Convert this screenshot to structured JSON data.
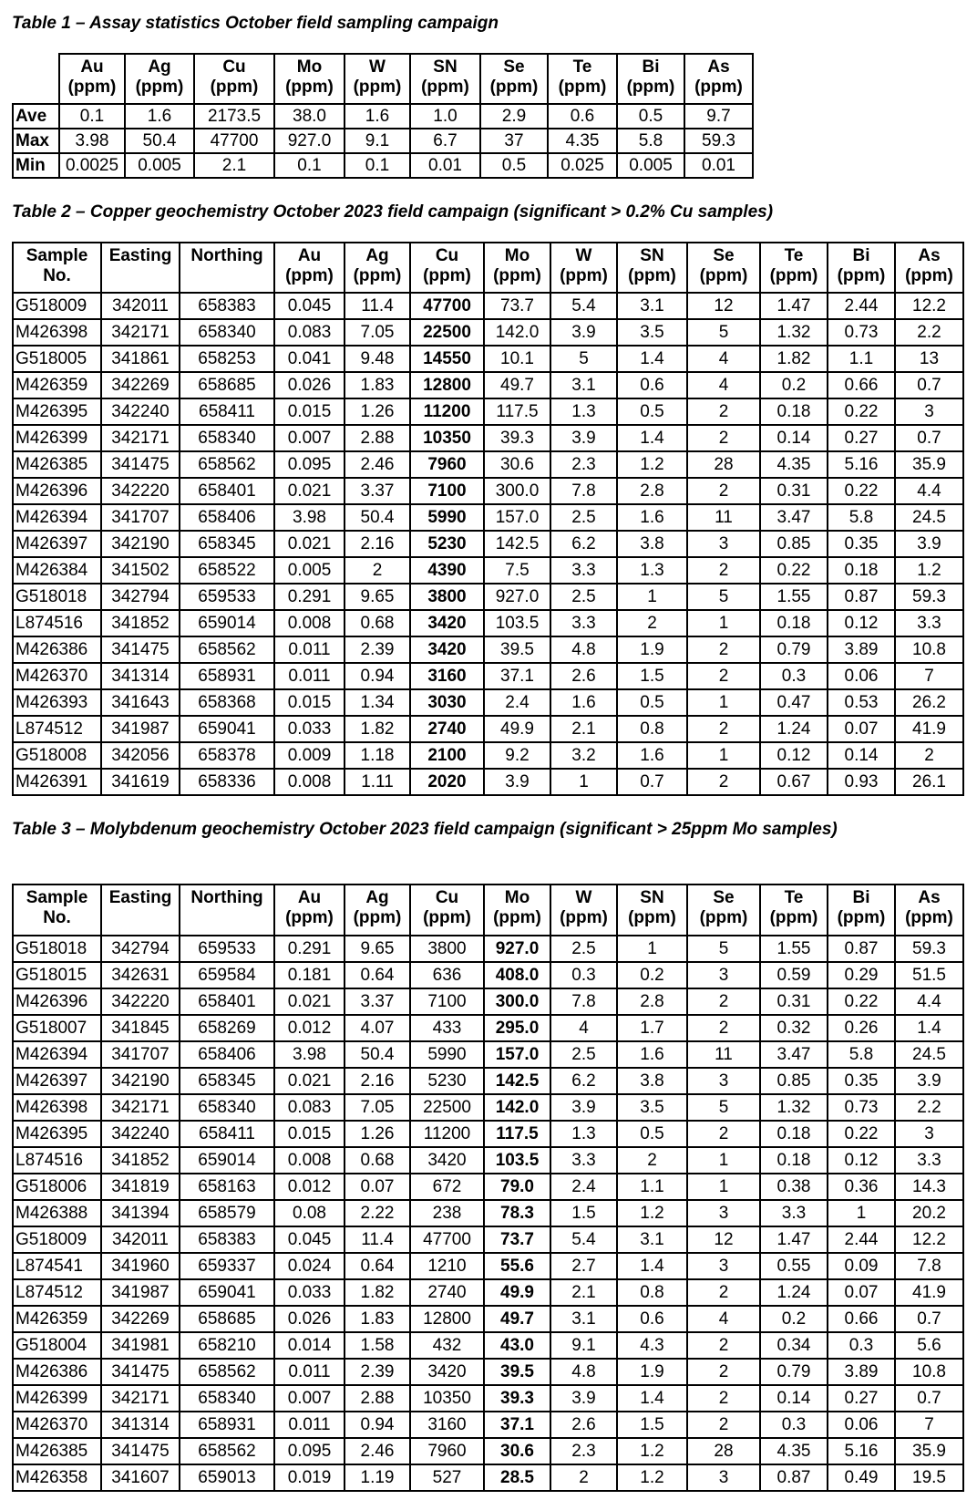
{
  "tables": [
    {
      "title": "Table 1 – Assay statistics October field sampling campaign",
      "headers": [
        [
          "",
          ""
        ],
        [
          "Au",
          "(ppm)"
        ],
        [
          "Ag",
          "(ppm)"
        ],
        [
          "Cu",
          "(ppm)"
        ],
        [
          "Mo",
          "(ppm)"
        ],
        [
          "W",
          "(ppm)"
        ],
        [
          "SN",
          "(ppm)"
        ],
        [
          "Se",
          "(ppm)"
        ],
        [
          "Te",
          "(ppm)"
        ],
        [
          "Bi",
          "(ppm)"
        ],
        [
          "As",
          "(ppm)"
        ]
      ],
      "rows": [
        [
          "Ave",
          "0.1",
          "1.6",
          "2173.5",
          "38.0",
          "1.6",
          "1.0",
          "2.9",
          "0.6",
          "0.5",
          "9.7"
        ],
        [
          "Max",
          "3.98",
          "50.4",
          "47700",
          "927.0",
          "9.1",
          "6.7",
          "37",
          "4.35",
          "5.8",
          "59.3"
        ],
        [
          "Min",
          "0.0025",
          "0.005",
          "2.1",
          "0.1",
          "0.1",
          "0.01",
          "0.5",
          "0.025",
          "0.005",
          "0.01"
        ]
      ]
    },
    {
      "title": "Table 2 – Copper geochemistry October 2023 field campaign (significant > 0.2% Cu samples)",
      "headers": [
        [
          "Sample",
          "No."
        ],
        [
          "Easting",
          ""
        ],
        [
          "Northing",
          ""
        ],
        [
          "Au",
          "(ppm)"
        ],
        [
          "Ag",
          "(ppm)"
        ],
        [
          "Cu",
          "(ppm)"
        ],
        [
          "Mo",
          "(ppm)"
        ],
        [
          "W",
          "(ppm)"
        ],
        [
          "SN",
          "(ppm)"
        ],
        [
          "Se",
          "(ppm)"
        ],
        [
          "Te",
          "(ppm)"
        ],
        [
          "Bi",
          "(ppm)"
        ],
        [
          "As",
          "(ppm)"
        ]
      ],
      "bold_column": "Cu",
      "rows": [
        [
          "G518009",
          "342011",
          "658383",
          "0.045",
          "11.4",
          "47700",
          "73.7",
          "5.4",
          "3.1",
          "12",
          "1.47",
          "2.44",
          "12.2"
        ],
        [
          "M426398",
          "342171",
          "658340",
          "0.083",
          "7.05",
          "22500",
          "142.0",
          "3.9",
          "3.5",
          "5",
          "1.32",
          "0.73",
          "2.2"
        ],
        [
          "G518005",
          "341861",
          "658253",
          "0.041",
          "9.48",
          "14550",
          "10.1",
          "5",
          "1.4",
          "4",
          "1.82",
          "1.1",
          "13"
        ],
        [
          "M426359",
          "342269",
          "658685",
          "0.026",
          "1.83",
          "12800",
          "49.7",
          "3.1",
          "0.6",
          "4",
          "0.2",
          "0.66",
          "0.7"
        ],
        [
          "M426395",
          "342240",
          "658411",
          "0.015",
          "1.26",
          "11200",
          "117.5",
          "1.3",
          "0.5",
          "2",
          "0.18",
          "0.22",
          "3"
        ],
        [
          "M426399",
          "342171",
          "658340",
          "0.007",
          "2.88",
          "10350",
          "39.3",
          "3.9",
          "1.4",
          "2",
          "0.14",
          "0.27",
          "0.7"
        ],
        [
          "M426385",
          "341475",
          "658562",
          "0.095",
          "2.46",
          "7960",
          "30.6",
          "2.3",
          "1.2",
          "28",
          "4.35",
          "5.16",
          "35.9"
        ],
        [
          "M426396",
          "342220",
          "658401",
          "0.021",
          "3.37",
          "7100",
          "300.0",
          "7.8",
          "2.8",
          "2",
          "0.31",
          "0.22",
          "4.4"
        ],
        [
          "M426394",
          "341707",
          "658406",
          "3.98",
          "50.4",
          "5990",
          "157.0",
          "2.5",
          "1.6",
          "11",
          "3.47",
          "5.8",
          "24.5"
        ],
        [
          "M426397",
          "342190",
          "658345",
          "0.021",
          "2.16",
          "5230",
          "142.5",
          "6.2",
          "3.8",
          "3",
          "0.85",
          "0.35",
          "3.9"
        ],
        [
          "M426384",
          "341502",
          "658522",
          "0.005",
          "2",
          "4390",
          "7.5",
          "3.3",
          "1.3",
          "2",
          "0.22",
          "0.18",
          "1.2"
        ],
        [
          "G518018",
          "342794",
          "659533",
          "0.291",
          "9.65",
          "3800",
          "927.0",
          "2.5",
          "1",
          "5",
          "1.55",
          "0.87",
          "59.3"
        ],
        [
          "L874516",
          "341852",
          "659014",
          "0.008",
          "0.68",
          "3420",
          "103.5",
          "3.3",
          "2",
          "1",
          "0.18",
          "0.12",
          "3.3"
        ],
        [
          "M426386",
          "341475",
          "658562",
          "0.011",
          "2.39",
          "3420",
          "39.5",
          "4.8",
          "1.9",
          "2",
          "0.79",
          "3.89",
          "10.8"
        ],
        [
          "M426370",
          "341314",
          "658931",
          "0.011",
          "0.94",
          "3160",
          "37.1",
          "2.6",
          "1.5",
          "2",
          "0.3",
          "0.06",
          "7"
        ],
        [
          "M426393",
          "341643",
          "658368",
          "0.015",
          "1.34",
          "3030",
          "2.4",
          "1.6",
          "0.5",
          "1",
          "0.47",
          "0.53",
          "26.2"
        ],
        [
          "L874512",
          "341987",
          "659041",
          "0.033",
          "1.82",
          "2740",
          "49.9",
          "2.1",
          "0.8",
          "2",
          "1.24",
          "0.07",
          "41.9"
        ],
        [
          "G518008",
          "342056",
          "658378",
          "0.009",
          "1.18",
          "2100",
          "9.2",
          "3.2",
          "1.6",
          "1",
          "0.12",
          "0.14",
          "2"
        ],
        [
          "M426391",
          "341619",
          "658336",
          "0.008",
          "1.11",
          "2020",
          "3.9",
          "1",
          "0.7",
          "2",
          "0.67",
          "0.93",
          "26.1"
        ]
      ]
    },
    {
      "title": "Table 3 – Molybdenum geochemistry October 2023 field campaign (significant > 25ppm Mo samples)",
      "headers": [
        [
          "Sample",
          "No."
        ],
        [
          "Easting",
          ""
        ],
        [
          "Northing",
          ""
        ],
        [
          "Au",
          "(ppm)"
        ],
        [
          "Ag",
          "(ppm)"
        ],
        [
          "Cu",
          "(ppm)"
        ],
        [
          "Mo",
          "(ppm)"
        ],
        [
          "W",
          "(ppm)"
        ],
        [
          "SN",
          "(ppm)"
        ],
        [
          "Se",
          "(ppm)"
        ],
        [
          "Te",
          "(ppm)"
        ],
        [
          "Bi",
          "(ppm)"
        ],
        [
          "As",
          "(ppm)"
        ]
      ],
      "bold_column": "Mo",
      "rows": [
        [
          "G518018",
          "342794",
          "659533",
          "0.291",
          "9.65",
          "3800",
          "927.0",
          "2.5",
          "1",
          "5",
          "1.55",
          "0.87",
          "59.3"
        ],
        [
          "G518015",
          "342631",
          "659584",
          "0.181",
          "0.64",
          "636",
          "408.0",
          "0.3",
          "0.2",
          "3",
          "0.59",
          "0.29",
          "51.5"
        ],
        [
          "M426396",
          "342220",
          "658401",
          "0.021",
          "3.37",
          "7100",
          "300.0",
          "7.8",
          "2.8",
          "2",
          "0.31",
          "0.22",
          "4.4"
        ],
        [
          "G518007",
          "341845",
          "658269",
          "0.012",
          "4.07",
          "433",
          "295.0",
          "4",
          "1.7",
          "2",
          "0.32",
          "0.26",
          "1.4"
        ],
        [
          "M426394",
          "341707",
          "658406",
          "3.98",
          "50.4",
          "5990",
          "157.0",
          "2.5",
          "1.6",
          "11",
          "3.47",
          "5.8",
          "24.5"
        ],
        [
          "M426397",
          "342190",
          "658345",
          "0.021",
          "2.16",
          "5230",
          "142.5",
          "6.2",
          "3.8",
          "3",
          "0.85",
          "0.35",
          "3.9"
        ],
        [
          "M426398",
          "342171",
          "658340",
          "0.083",
          "7.05",
          "22500",
          "142.0",
          "3.9",
          "3.5",
          "5",
          "1.32",
          "0.73",
          "2.2"
        ],
        [
          "M426395",
          "342240",
          "658411",
          "0.015",
          "1.26",
          "11200",
          "117.5",
          "1.3",
          "0.5",
          "2",
          "0.18",
          "0.22",
          "3"
        ],
        [
          "L874516",
          "341852",
          "659014",
          "0.008",
          "0.68",
          "3420",
          "103.5",
          "3.3",
          "2",
          "1",
          "0.18",
          "0.12",
          "3.3"
        ],
        [
          "G518006",
          "341819",
          "658163",
          "0.012",
          "0.07",
          "672",
          "79.0",
          "2.4",
          "1.1",
          "1",
          "0.38",
          "0.36",
          "14.3"
        ],
        [
          "M426388",
          "341394",
          "658579",
          "0.08",
          "2.22",
          "238",
          "78.3",
          "1.5",
          "1.2",
          "3",
          "3.3",
          "1",
          "20.2"
        ],
        [
          "G518009",
          "342011",
          "658383",
          "0.045",
          "11.4",
          "47700",
          "73.7",
          "5.4",
          "3.1",
          "12",
          "1.47",
          "2.44",
          "12.2"
        ],
        [
          "L874541",
          "341960",
          "659337",
          "0.024",
          "0.64",
          "1210",
          "55.6",
          "2.7",
          "1.4",
          "3",
          "0.55",
          "0.09",
          "7.8"
        ],
        [
          "L874512",
          "341987",
          "659041",
          "0.033",
          "1.82",
          "2740",
          "49.9",
          "2.1",
          "0.8",
          "2",
          "1.24",
          "0.07",
          "41.9"
        ],
        [
          "M426359",
          "342269",
          "658685",
          "0.026",
          "1.83",
          "12800",
          "49.7",
          "3.1",
          "0.6",
          "4",
          "0.2",
          "0.66",
          "0.7"
        ],
        [
          "G518004",
          "341981",
          "658210",
          "0.014",
          "1.58",
          "432",
          "43.0",
          "9.1",
          "4.3",
          "2",
          "0.34",
          "0.3",
          "5.6"
        ],
        [
          "M426386",
          "341475",
          "658562",
          "0.011",
          "2.39",
          "3420",
          "39.5",
          "4.8",
          "1.9",
          "2",
          "0.79",
          "3.89",
          "10.8"
        ],
        [
          "M426399",
          "342171",
          "658340",
          "0.007",
          "2.88",
          "10350",
          "39.3",
          "3.9",
          "1.4",
          "2",
          "0.14",
          "0.27",
          "0.7"
        ],
        [
          "M426370",
          "341314",
          "658931",
          "0.011",
          "0.94",
          "3160",
          "37.1",
          "2.6",
          "1.5",
          "2",
          "0.3",
          "0.06",
          "7"
        ],
        [
          "M426385",
          "341475",
          "658562",
          "0.095",
          "2.46",
          "7960",
          "30.6",
          "2.3",
          "1.2",
          "28",
          "4.35",
          "5.16",
          "35.9"
        ],
        [
          "M426358",
          "341607",
          "659013",
          "0.019",
          "1.19",
          "527",
          "28.5",
          "2",
          "1.2",
          "3",
          "0.87",
          "0.49",
          "19.5"
        ]
      ]
    }
  ]
}
